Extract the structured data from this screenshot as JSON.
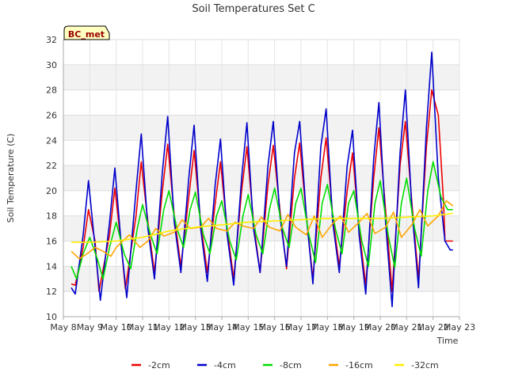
{
  "chart_data": {
    "type": "line",
    "title": "Soil Temperatures Set C",
    "xlabel": "Time",
    "ylabel": "Soil Temperature (C)",
    "badge": "BC_met",
    "xlim": [
      0,
      15
    ],
    "ylim": [
      10,
      32
    ],
    "yticks": [
      10,
      12,
      14,
      16,
      18,
      20,
      22,
      24,
      26,
      28,
      30,
      32
    ],
    "xticks": [
      "May 8",
      "May 9",
      "May 10",
      "May 11",
      "May 12",
      "May 13",
      "May 14",
      "May 15",
      "May 16",
      "May 17",
      "May 18",
      "May 19",
      "May 20",
      "May 21",
      "May 22",
      "May 23"
    ],
    "grid": true,
    "legend_position": "bottom",
    "series": [
      {
        "name": "-2cm",
        "color": "#ee0000",
        "x": [
          0.3,
          0.45,
          0.75,
          0.95,
          1.2,
          1.35,
          1.75,
          1.95,
          2.2,
          2.35,
          2.75,
          2.95,
          3.2,
          3.45,
          3.75,
          3.95,
          4.2,
          4.45,
          4.75,
          4.95,
          5.2,
          5.45,
          5.75,
          5.95,
          6.2,
          6.45,
          6.75,
          6.95,
          7.2,
          7.45,
          7.75,
          7.95,
          8.2,
          8.45,
          8.75,
          8.95,
          9.2,
          9.45,
          9.75,
          9.95,
          10.2,
          10.45,
          10.75,
          10.95,
          11.2,
          11.45,
          11.75,
          11.95,
          12.2,
          12.45,
          12.75,
          12.95,
          13.2,
          13.45,
          13.75,
          13.95,
          14.2,
          14.4,
          14.45,
          14.6,
          14.75
        ],
        "y": [
          12.6,
          12.5,
          15.5,
          18.5,
          16.0,
          12.0,
          16.5,
          20.2,
          15.5,
          12.2,
          18.0,
          22.3,
          17.5,
          13.5,
          20.0,
          23.7,
          18.0,
          14.0,
          19.5,
          23.2,
          17.5,
          13.5,
          19.0,
          22.3,
          17.0,
          13.0,
          20.0,
          23.5,
          17.5,
          13.5,
          20.5,
          23.6,
          18.5,
          13.8,
          21.0,
          23.8,
          18.0,
          13.0,
          21.0,
          24.2,
          18.0,
          14.0,
          20.0,
          23.0,
          17.0,
          12.5,
          21.0,
          25.0,
          18.5,
          12.0,
          22.0,
          25.5,
          19.0,
          13.0,
          23.5,
          28.0,
          26.0,
          19.0,
          16.0,
          16.0,
          16.0
        ]
      },
      {
        "name": "-4cm",
        "color": "#0000cc",
        "x": [
          0.3,
          0.45,
          0.75,
          0.95,
          1.2,
          1.4,
          1.75,
          1.95,
          2.2,
          2.4,
          2.75,
          2.95,
          3.2,
          3.45,
          3.75,
          3.95,
          4.2,
          4.45,
          4.75,
          4.95,
          5.2,
          5.45,
          5.75,
          5.95,
          6.2,
          6.45,
          6.75,
          6.95,
          7.2,
          7.45,
          7.75,
          7.95,
          8.2,
          8.45,
          8.75,
          8.95,
          9.2,
          9.45,
          9.75,
          9.95,
          10.2,
          10.45,
          10.75,
          10.95,
          11.2,
          11.45,
          11.75,
          11.95,
          12.2,
          12.45,
          12.75,
          12.95,
          13.2,
          13.45,
          13.75,
          13.95,
          14.2,
          14.45,
          14.65,
          14.75
        ],
        "y": [
          12.3,
          11.8,
          16.5,
          20.8,
          15.5,
          11.3,
          17.5,
          21.8,
          15.5,
          11.5,
          20.0,
          24.5,
          17.0,
          13.0,
          21.5,
          25.9,
          17.5,
          13.5,
          21.0,
          25.2,
          17.0,
          12.8,
          20.5,
          24.1,
          16.5,
          12.5,
          21.0,
          25.4,
          17.0,
          13.5,
          22.0,
          25.5,
          18.0,
          14.0,
          23.0,
          25.5,
          18.0,
          12.6,
          23.5,
          26.5,
          17.5,
          13.5,
          22.0,
          24.8,
          16.5,
          11.8,
          22.5,
          27.0,
          17.5,
          10.8,
          23.0,
          28.0,
          18.5,
          12.3,
          25.0,
          31.0,
          21.0,
          16.0,
          15.3,
          15.3
        ]
      },
      {
        "name": "-8cm",
        "color": "#00dd00",
        "x": [
          0.3,
          0.5,
          0.75,
          1.0,
          1.3,
          1.5,
          1.75,
          2.0,
          2.3,
          2.55,
          2.8,
          3.0,
          3.3,
          3.55,
          3.8,
          4.0,
          4.3,
          4.55,
          4.8,
          5.0,
          5.3,
          5.55,
          5.8,
          6.0,
          6.3,
          6.55,
          6.8,
          7.0,
          7.3,
          7.55,
          7.8,
          8.0,
          8.3,
          8.55,
          8.8,
          9.0,
          9.3,
          9.55,
          9.8,
          10.0,
          10.3,
          10.55,
          10.8,
          11.0,
          11.3,
          11.55,
          11.8,
          12.0,
          12.3,
          12.55,
          12.8,
          13.0,
          13.3,
          13.55,
          13.8,
          14.0,
          14.3,
          14.55,
          14.75
        ],
        "y": [
          14.0,
          13.0,
          15.0,
          16.3,
          14.5,
          13.0,
          15.5,
          17.5,
          15.0,
          13.8,
          17.0,
          18.9,
          16.5,
          15.0,
          18.5,
          20.0,
          17.0,
          15.5,
          18.5,
          19.9,
          16.5,
          15.0,
          18.0,
          19.2,
          16.0,
          14.5,
          18.0,
          19.7,
          16.5,
          15.0,
          18.5,
          20.2,
          17.0,
          15.5,
          19.0,
          20.2,
          16.5,
          14.3,
          19.0,
          20.5,
          17.0,
          15.0,
          19.0,
          20.0,
          16.0,
          14.0,
          19.0,
          20.8,
          16.5,
          13.9,
          19.0,
          21.0,
          17.0,
          14.8,
          20.0,
          22.3,
          19.5,
          18.5,
          18.5
        ]
      },
      {
        "name": "-16cm",
        "color": "#ffa500",
        "x": [
          0.3,
          0.6,
          0.9,
          1.2,
          1.5,
          1.8,
          2.0,
          2.5,
          2.9,
          3.2,
          3.5,
          3.8,
          4.2,
          4.5,
          4.8,
          5.2,
          5.5,
          5.8,
          6.2,
          6.5,
          6.8,
          7.2,
          7.5,
          7.8,
          8.2,
          8.5,
          8.8,
          9.2,
          9.5,
          9.8,
          10.2,
          10.5,
          10.8,
          11.2,
          11.5,
          11.8,
          12.2,
          12.5,
          12.8,
          13.2,
          13.5,
          13.8,
          14.2,
          14.5,
          14.75
        ],
        "y": [
          15.2,
          14.6,
          15.0,
          15.5,
          15.2,
          14.8,
          15.5,
          16.5,
          15.5,
          16.0,
          17.0,
          16.4,
          16.7,
          17.7,
          17.0,
          17.1,
          17.8,
          17.0,
          16.8,
          17.5,
          17.2,
          17.0,
          17.9,
          17.1,
          16.8,
          18.1,
          17.1,
          16.5,
          18.0,
          16.3,
          17.4,
          18.0,
          16.7,
          17.5,
          18.2,
          16.6,
          17.1,
          18.3,
          16.3,
          17.3,
          18.5,
          17.2,
          18.0,
          19.2,
          18.8
        ]
      },
      {
        "name": "-32cm",
        "color": "#ffee00",
        "x": [
          0.3,
          1.0,
          2.0,
          3.0,
          4.0,
          5.0,
          6.0,
          7.0,
          8.0,
          9.0,
          10.0,
          11.0,
          12.0,
          13.0,
          14.0,
          14.75
        ],
        "y": [
          15.9,
          15.9,
          16.0,
          16.3,
          16.8,
          17.1,
          17.3,
          17.5,
          17.6,
          17.7,
          17.8,
          17.8,
          17.8,
          17.9,
          18.0,
          18.2
        ]
      }
    ]
  }
}
